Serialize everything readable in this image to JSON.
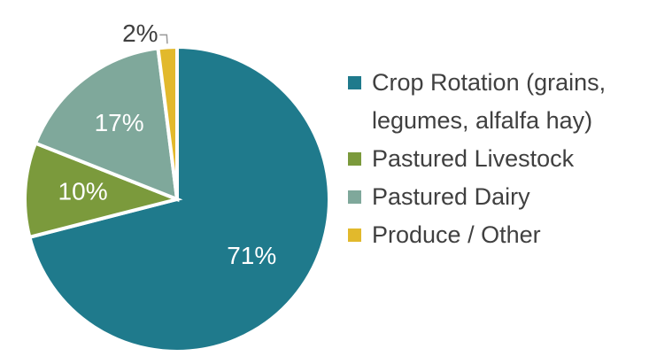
{
  "chart_data": {
    "type": "pie",
    "categories": [
      "Crop Rotation (grains, legumes, alfalfa hay)",
      "Pastured Livestock",
      "Pastured Dairy",
      "Produce / Other"
    ],
    "values": [
      71,
      10,
      17,
      2
    ],
    "value_labels": [
      "71%",
      "10%",
      "17%",
      "2%"
    ],
    "colors": [
      "#1f7a8c",
      "#7b9a3c",
      "#7fa89b",
      "#e2b92c"
    ],
    "legend": "right"
  }
}
